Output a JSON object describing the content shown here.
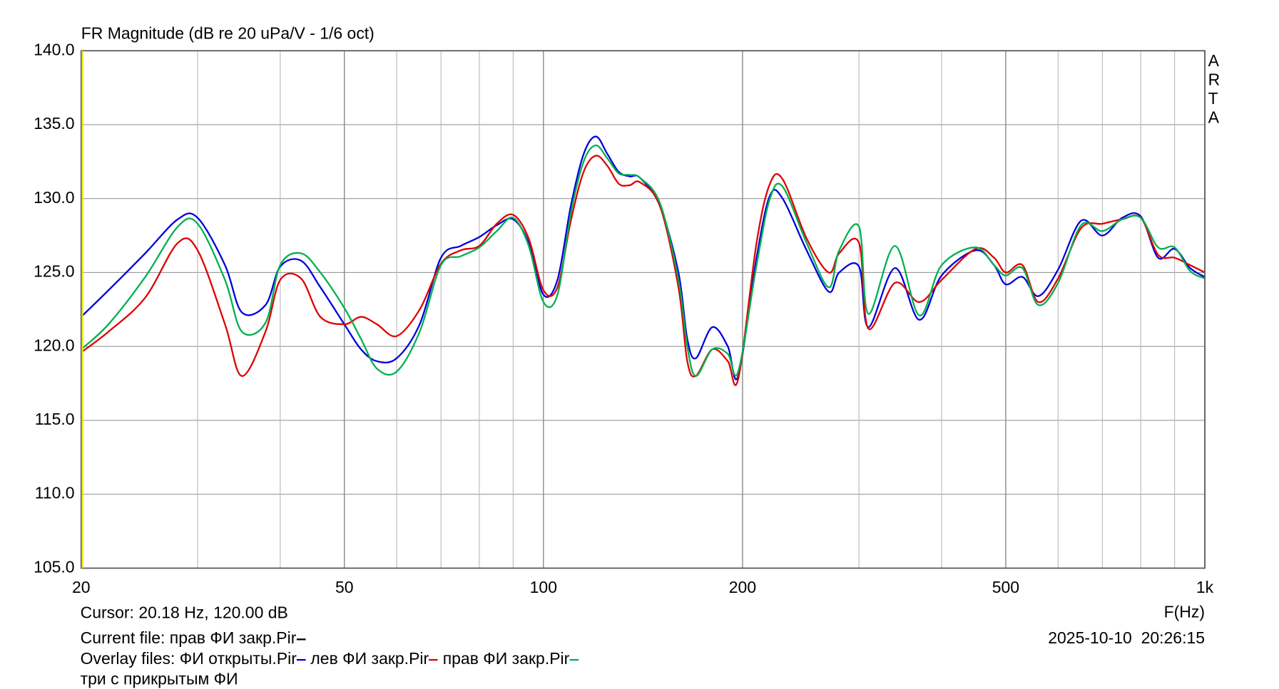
{
  "chart_data": {
    "type": "line",
    "title": "FR Magnitude (dB re 20 uPa/V - 1/6 oct)",
    "x_label": "F(Hz)",
    "log_x": true,
    "grid": true,
    "brand": "ARTA",
    "cursor": "Cursor: 20.18 Hz, 120.00 dB",
    "current_file": "Current file: прав ФИ закр.Pir",
    "current_color": "#000000",
    "overlay_label": "Overlay files:",
    "overlay_set": "три с прикрытым ФИ",
    "timestamp": "2025-10-10  20:26:15",
    "xlim": [
      20,
      1000
    ],
    "xticks": [
      20,
      50,
      100,
      200,
      500,
      {
        "value": 1000,
        "label": "1k"
      }
    ],
    "xminor": [
      30,
      40,
      60,
      70,
      80,
      90,
      300,
      400,
      600,
      700,
      800,
      900
    ],
    "ylim": [
      105,
      140
    ],
    "yticks": [
      {
        "value": 105,
        "label": "105.0"
      },
      {
        "value": 110,
        "label": "110.0"
      },
      {
        "value": 115,
        "label": "115.0"
      },
      {
        "value": 120,
        "label": "120.0"
      },
      {
        "value": 125,
        "label": "125.0"
      },
      {
        "value": 130,
        "label": "130.0"
      },
      {
        "value": 135,
        "label": "135.0"
      },
      {
        "value": 140,
        "label": "140.0"
      }
    ],
    "x": [
      20,
      22,
      25,
      28,
      30,
      33,
      35,
      38,
      40,
      43,
      46,
      50,
      53,
      56,
      60,
      65,
      70,
      75,
      80,
      85,
      90,
      95,
      100,
      105,
      110,
      115,
      120,
      125,
      130,
      135,
      140,
      150,
      160,
      165,
      170,
      180,
      190,
      197,
      210,
      220,
      230,
      250,
      270,
      280,
      300,
      310,
      340,
      370,
      400,
      450,
      480,
      500,
      530,
      560,
      600,
      650,
      700,
      750,
      800,
      850,
      900,
      950,
      1000
    ],
    "series": [
      {
        "name": "ФИ открыты.Pir",
        "color": "#0000e0",
        "values": [
          122,
          123.8,
          126.3,
          128.6,
          128.7,
          125.5,
          122.3,
          122.8,
          125.4,
          125.8,
          124,
          121.5,
          119.8,
          119,
          119.2,
          121.5,
          126,
          126.8,
          127.4,
          128.2,
          128.6,
          127,
          123.5,
          124.5,
          129.5,
          133,
          134.2,
          133,
          131.8,
          131.5,
          131.4,
          129.5,
          125,
          120.5,
          119.2,
          121.3,
          120,
          118,
          126,
          130.2,
          130,
          126.5,
          123.7,
          125,
          125.4,
          121.3,
          125.3,
          121.8,
          124.8,
          126.5,
          125.5,
          124.2,
          124.7,
          123.4,
          125.2,
          128.5,
          127.5,
          128.7,
          128.8,
          126,
          126.6,
          125.3,
          124.7
        ]
      },
      {
        "name": "лев ФИ закр.Pir",
        "color": "#e00000",
        "values": [
          119.6,
          121,
          123.3,
          127,
          126.5,
          121.5,
          118,
          121,
          124.5,
          124.6,
          122,
          121.5,
          122,
          121.5,
          120.7,
          122.5,
          125.6,
          126.5,
          126.8,
          128.3,
          128.9,
          127.3,
          123.8,
          124,
          128.5,
          131.8,
          132.9,
          132.2,
          131,
          130.9,
          131.1,
          129.5,
          124,
          119,
          118,
          119.8,
          119,
          117.8,
          127,
          131,
          131.3,
          127.3,
          125,
          126.3,
          127,
          121.2,
          124.3,
          123,
          124.5,
          126.6,
          126,
          125,
          125.5,
          123,
          124.6,
          128,
          128.3,
          128.6,
          128.7,
          126.2,
          126,
          125.5,
          125
        ]
      },
      {
        "name": "прав ФИ закр.Pir",
        "color": "#00b050",
        "values": [
          119.8,
          121.5,
          124.7,
          128.1,
          128.3,
          124.5,
          121,
          121.6,
          125.5,
          126.3,
          125,
          122.6,
          120.5,
          118.5,
          118.3,
          121,
          125.5,
          126.1,
          126.7,
          127.8,
          128.7,
          126.8,
          123,
          123.5,
          129,
          132.5,
          133.6,
          132.7,
          131.7,
          131.6,
          131.4,
          129.7,
          124.5,
          120,
          118,
          119.8,
          119.5,
          118.3,
          125.5,
          130,
          130.8,
          127,
          124,
          126.5,
          128.1,
          122.2,
          126.8,
          122.1,
          125.5,
          126.7,
          125.5,
          124.8,
          125.3,
          122.8,
          124.3,
          128.2,
          127.8,
          128.6,
          128.7,
          126.7,
          126.7,
          125.1,
          124.6
        ]
      }
    ]
  }
}
